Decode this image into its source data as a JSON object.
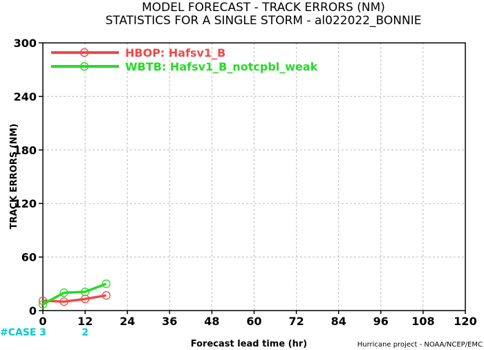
{
  "title_line1": "MODEL FORECAST - TRACK ERRORS (NM)",
  "title_line2": "STATISTICS FOR A SINGLE STORM - al022022_BONNIE",
  "credit": "Hurricane project - NOAA/NCEP/EMC",
  "case_label": "#CASE",
  "case_counts": [
    {
      "x": 0,
      "label": "3"
    },
    {
      "x": 12,
      "label": "2"
    }
  ],
  "colors": {
    "case_text": "#00cccc",
    "grid": "#bbbbbb"
  },
  "chart_data": {
    "type": "line",
    "title": "MODEL FORECAST - TRACK ERRORS (NM)",
    "subtitle": "STATISTICS FOR A SINGLE STORM - al022022_BONNIE",
    "xlabel": "Forecast lead time (hr)",
    "ylabel": "TRACK ERRORS (NM)",
    "xlim": [
      0,
      120
    ],
    "ylim": [
      0,
      300
    ],
    "xticks": [
      0,
      12,
      24,
      36,
      48,
      60,
      72,
      84,
      96,
      108,
      120
    ],
    "yticks": [
      0,
      60,
      120,
      180,
      240,
      300
    ],
    "grid": true,
    "legend_position": "top-left",
    "series": [
      {
        "name": "HBOP: Hafsv1_B",
        "color": "#f04848",
        "x": [
          0,
          6,
          12,
          18
        ],
        "y": [
          11,
          10,
          13,
          17
        ]
      },
      {
        "name": "WBTB: Hafsv1_B_notcpbl_weak",
        "color": "#22dd22",
        "x": [
          0,
          6,
          12,
          18
        ],
        "y": [
          7,
          20,
          21,
          30
        ]
      }
    ]
  }
}
